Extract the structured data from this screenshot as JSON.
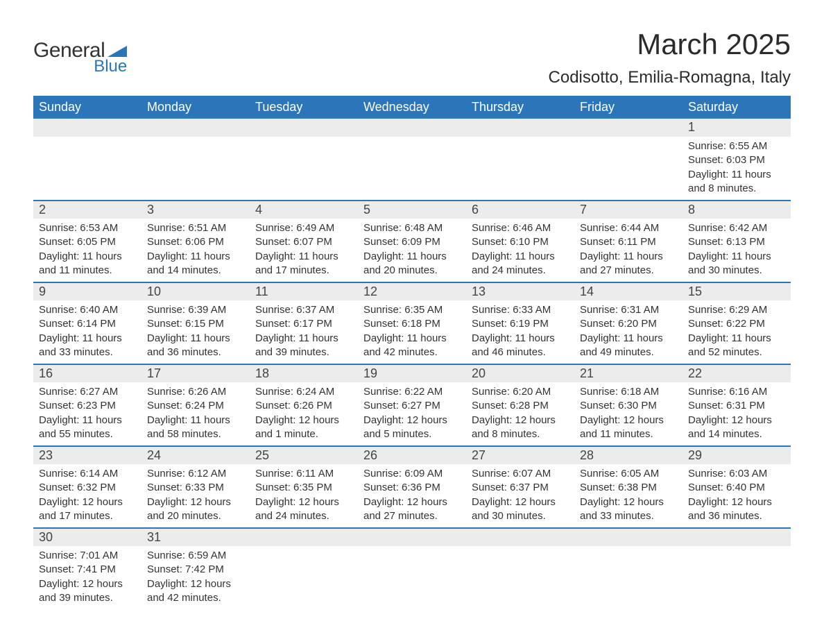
{
  "logo": {
    "text_main": "General",
    "text_sub": "Blue",
    "accent_color": "#2a76b8"
  },
  "title": "March 2025",
  "location": "Codisotto, Emilia-Romagna, Italy",
  "colors": {
    "header_bg": "#2a76b8",
    "header_text": "#ffffff",
    "daynum_bg": "#ececec",
    "row_divider": "#2a76b8",
    "body_text": "#333333",
    "page_bg": "#ffffff"
  },
  "typography": {
    "title_fontsize_pt": 32,
    "location_fontsize_pt": 18,
    "weekday_fontsize_pt": 14,
    "daynum_fontsize_pt": 14,
    "detail_fontsize_pt": 11
  },
  "weekdays": [
    "Sunday",
    "Monday",
    "Tuesday",
    "Wednesday",
    "Thursday",
    "Friday",
    "Saturday"
  ],
  "weeks": [
    [
      null,
      null,
      null,
      null,
      null,
      null,
      {
        "day": "1",
        "sunrise": "Sunrise: 6:55 AM",
        "sunset": "Sunset: 6:03 PM",
        "daylight": "Daylight: 11 hours and 8 minutes."
      }
    ],
    [
      {
        "day": "2",
        "sunrise": "Sunrise: 6:53 AM",
        "sunset": "Sunset: 6:05 PM",
        "daylight": "Daylight: 11 hours and 11 minutes."
      },
      {
        "day": "3",
        "sunrise": "Sunrise: 6:51 AM",
        "sunset": "Sunset: 6:06 PM",
        "daylight": "Daylight: 11 hours and 14 minutes."
      },
      {
        "day": "4",
        "sunrise": "Sunrise: 6:49 AM",
        "sunset": "Sunset: 6:07 PM",
        "daylight": "Daylight: 11 hours and 17 minutes."
      },
      {
        "day": "5",
        "sunrise": "Sunrise: 6:48 AM",
        "sunset": "Sunset: 6:09 PM",
        "daylight": "Daylight: 11 hours and 20 minutes."
      },
      {
        "day": "6",
        "sunrise": "Sunrise: 6:46 AM",
        "sunset": "Sunset: 6:10 PM",
        "daylight": "Daylight: 11 hours and 24 minutes."
      },
      {
        "day": "7",
        "sunrise": "Sunrise: 6:44 AM",
        "sunset": "Sunset: 6:11 PM",
        "daylight": "Daylight: 11 hours and 27 minutes."
      },
      {
        "day": "8",
        "sunrise": "Sunrise: 6:42 AM",
        "sunset": "Sunset: 6:13 PM",
        "daylight": "Daylight: 11 hours and 30 minutes."
      }
    ],
    [
      {
        "day": "9",
        "sunrise": "Sunrise: 6:40 AM",
        "sunset": "Sunset: 6:14 PM",
        "daylight": "Daylight: 11 hours and 33 minutes."
      },
      {
        "day": "10",
        "sunrise": "Sunrise: 6:39 AM",
        "sunset": "Sunset: 6:15 PM",
        "daylight": "Daylight: 11 hours and 36 minutes."
      },
      {
        "day": "11",
        "sunrise": "Sunrise: 6:37 AM",
        "sunset": "Sunset: 6:17 PM",
        "daylight": "Daylight: 11 hours and 39 minutes."
      },
      {
        "day": "12",
        "sunrise": "Sunrise: 6:35 AM",
        "sunset": "Sunset: 6:18 PM",
        "daylight": "Daylight: 11 hours and 42 minutes."
      },
      {
        "day": "13",
        "sunrise": "Sunrise: 6:33 AM",
        "sunset": "Sunset: 6:19 PM",
        "daylight": "Daylight: 11 hours and 46 minutes."
      },
      {
        "day": "14",
        "sunrise": "Sunrise: 6:31 AM",
        "sunset": "Sunset: 6:20 PM",
        "daylight": "Daylight: 11 hours and 49 minutes."
      },
      {
        "day": "15",
        "sunrise": "Sunrise: 6:29 AM",
        "sunset": "Sunset: 6:22 PM",
        "daylight": "Daylight: 11 hours and 52 minutes."
      }
    ],
    [
      {
        "day": "16",
        "sunrise": "Sunrise: 6:27 AM",
        "sunset": "Sunset: 6:23 PM",
        "daylight": "Daylight: 11 hours and 55 minutes."
      },
      {
        "day": "17",
        "sunrise": "Sunrise: 6:26 AM",
        "sunset": "Sunset: 6:24 PM",
        "daylight": "Daylight: 11 hours and 58 minutes."
      },
      {
        "day": "18",
        "sunrise": "Sunrise: 6:24 AM",
        "sunset": "Sunset: 6:26 PM",
        "daylight": "Daylight: 12 hours and 1 minute."
      },
      {
        "day": "19",
        "sunrise": "Sunrise: 6:22 AM",
        "sunset": "Sunset: 6:27 PM",
        "daylight": "Daylight: 12 hours and 5 minutes."
      },
      {
        "day": "20",
        "sunrise": "Sunrise: 6:20 AM",
        "sunset": "Sunset: 6:28 PM",
        "daylight": "Daylight: 12 hours and 8 minutes."
      },
      {
        "day": "21",
        "sunrise": "Sunrise: 6:18 AM",
        "sunset": "Sunset: 6:30 PM",
        "daylight": "Daylight: 12 hours and 11 minutes."
      },
      {
        "day": "22",
        "sunrise": "Sunrise: 6:16 AM",
        "sunset": "Sunset: 6:31 PM",
        "daylight": "Daylight: 12 hours and 14 minutes."
      }
    ],
    [
      {
        "day": "23",
        "sunrise": "Sunrise: 6:14 AM",
        "sunset": "Sunset: 6:32 PM",
        "daylight": "Daylight: 12 hours and 17 minutes."
      },
      {
        "day": "24",
        "sunrise": "Sunrise: 6:12 AM",
        "sunset": "Sunset: 6:33 PM",
        "daylight": "Daylight: 12 hours and 20 minutes."
      },
      {
        "day": "25",
        "sunrise": "Sunrise: 6:11 AM",
        "sunset": "Sunset: 6:35 PM",
        "daylight": "Daylight: 12 hours and 24 minutes."
      },
      {
        "day": "26",
        "sunrise": "Sunrise: 6:09 AM",
        "sunset": "Sunset: 6:36 PM",
        "daylight": "Daylight: 12 hours and 27 minutes."
      },
      {
        "day": "27",
        "sunrise": "Sunrise: 6:07 AM",
        "sunset": "Sunset: 6:37 PM",
        "daylight": "Daylight: 12 hours and 30 minutes."
      },
      {
        "day": "28",
        "sunrise": "Sunrise: 6:05 AM",
        "sunset": "Sunset: 6:38 PM",
        "daylight": "Daylight: 12 hours and 33 minutes."
      },
      {
        "day": "29",
        "sunrise": "Sunrise: 6:03 AM",
        "sunset": "Sunset: 6:40 PM",
        "daylight": "Daylight: 12 hours and 36 minutes."
      }
    ],
    [
      {
        "day": "30",
        "sunrise": "Sunrise: 7:01 AM",
        "sunset": "Sunset: 7:41 PM",
        "daylight": "Daylight: 12 hours and 39 minutes."
      },
      {
        "day": "31",
        "sunrise": "Sunrise: 6:59 AM",
        "sunset": "Sunset: 7:42 PM",
        "daylight": "Daylight: 12 hours and 42 minutes."
      },
      null,
      null,
      null,
      null,
      null
    ]
  ]
}
